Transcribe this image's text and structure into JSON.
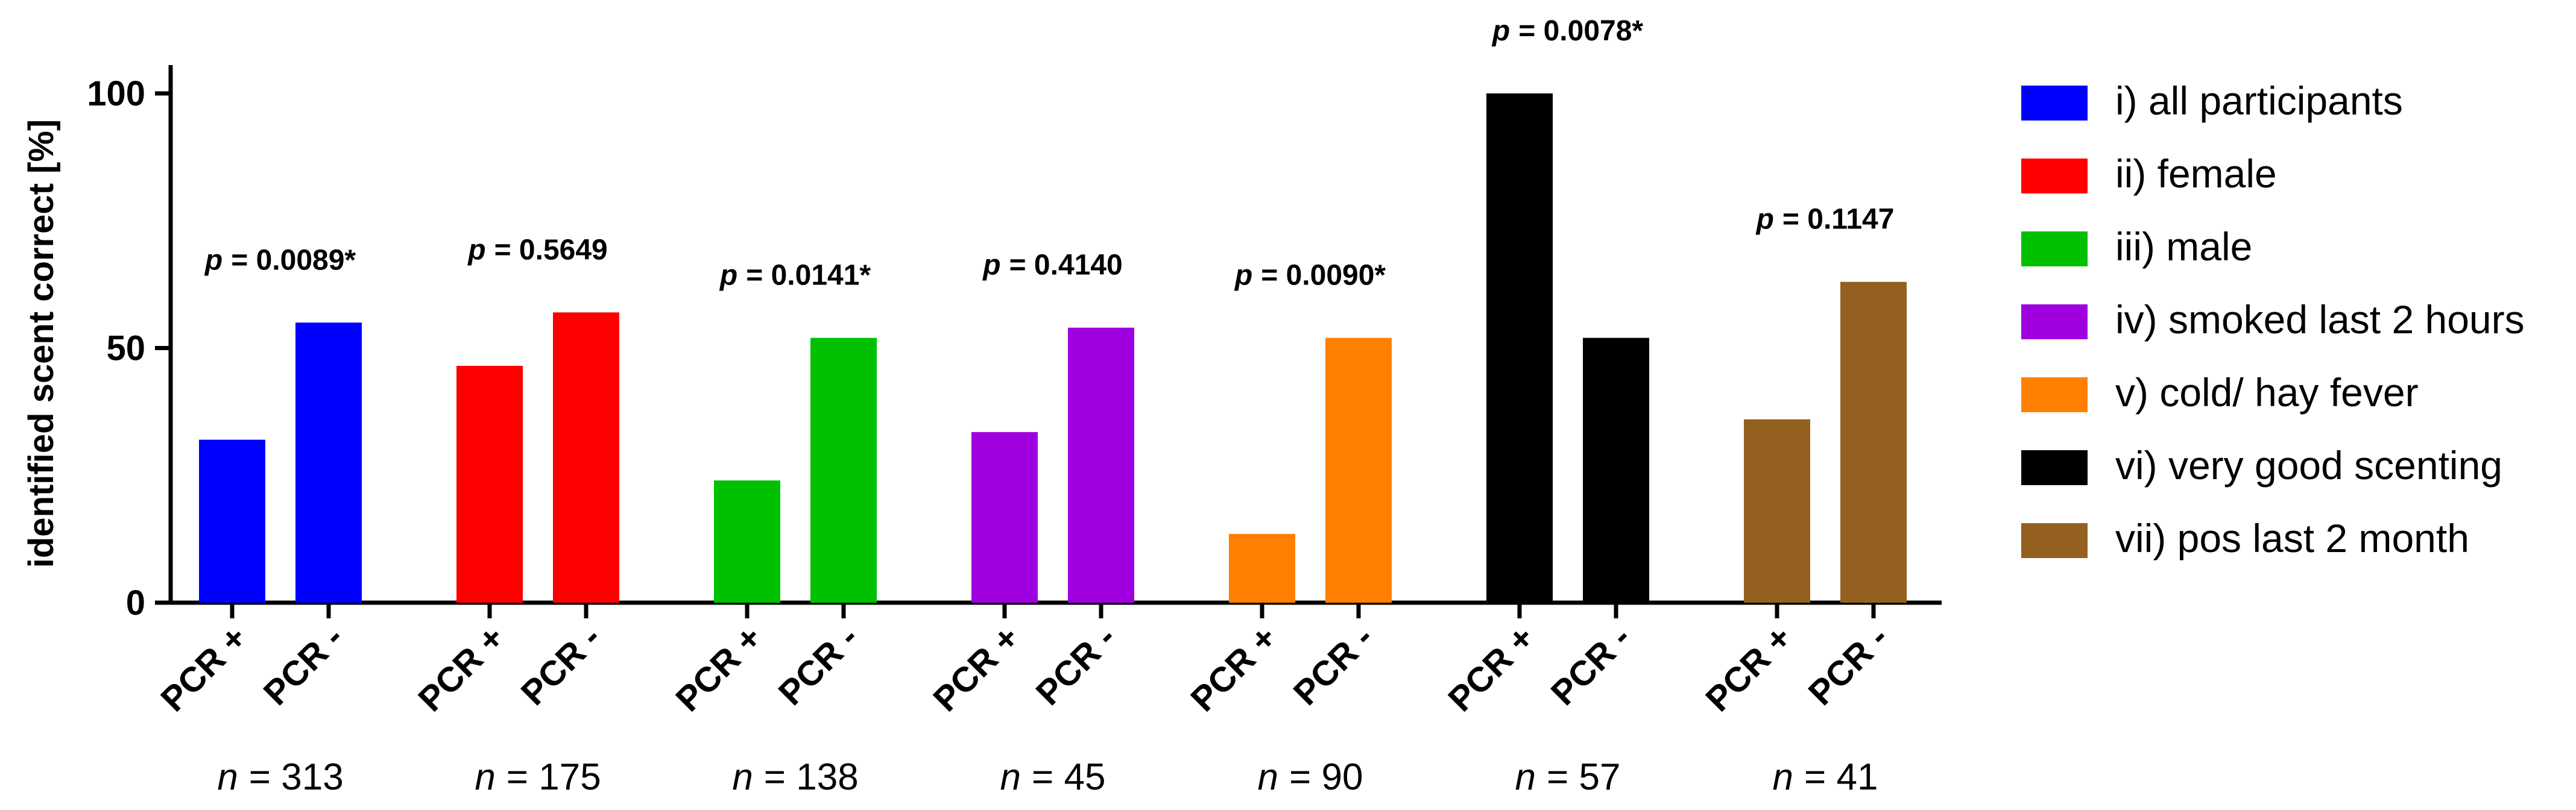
{
  "chart_data": {
    "type": "bar",
    "ylabel": "identified scent correct [%]",
    "xlabel": "",
    "ylim": [
      0,
      100
    ],
    "yticks": [
      0,
      50,
      100
    ],
    "bar_categories": [
      "PCR +",
      "PCR -"
    ],
    "groups": [
      {
        "name": "i) all participants",
        "color": "#0000ff",
        "values": [
          32,
          55
        ],
        "n_prefix": "n",
        "n_value": "= 313",
        "p_prefix": "p",
        "p_value": "= 0.0089*"
      },
      {
        "name": "ii) female",
        "color": "#ff0000",
        "values": [
          46.5,
          57
        ],
        "n_prefix": "n",
        "n_value": "= 175",
        "p_prefix": "p",
        "p_value": "= 0.5649"
      },
      {
        "name": "iii) male",
        "color": "#00c000",
        "values": [
          24,
          52
        ],
        "n_prefix": "n",
        "n_value": "= 138",
        "p_prefix": "p",
        "p_value": "= 0.0141*"
      },
      {
        "name": "iv) smoked last 2 hours",
        "color": "#a000e0",
        "values": [
          33.5,
          54
        ],
        "n_prefix": "n",
        "n_value": "= 45",
        "p_prefix": "p",
        "p_value": "= 0.4140"
      },
      {
        "name": "v) cold/ hay fever",
        "color": "#ff8000",
        "values": [
          13.5,
          52
        ],
        "n_prefix": "n",
        "n_value": "= 90",
        "p_prefix": "p",
        "p_value": "= 0.0090*"
      },
      {
        "name": "vi) very good scenting",
        "color": "#000000",
        "values": [
          100,
          52
        ],
        "n_prefix": "n",
        "n_value": "= 57",
        "p_prefix": "p",
        "p_value": "= 0.0078*"
      },
      {
        "name": "vii) pos last 2 month",
        "color": "#946020",
        "values": [
          36,
          63
        ],
        "n_prefix": "n",
        "n_value": "= 41",
        "p_prefix": "p",
        "p_value": "= 0.1147"
      }
    ],
    "legend_position": "right"
  }
}
